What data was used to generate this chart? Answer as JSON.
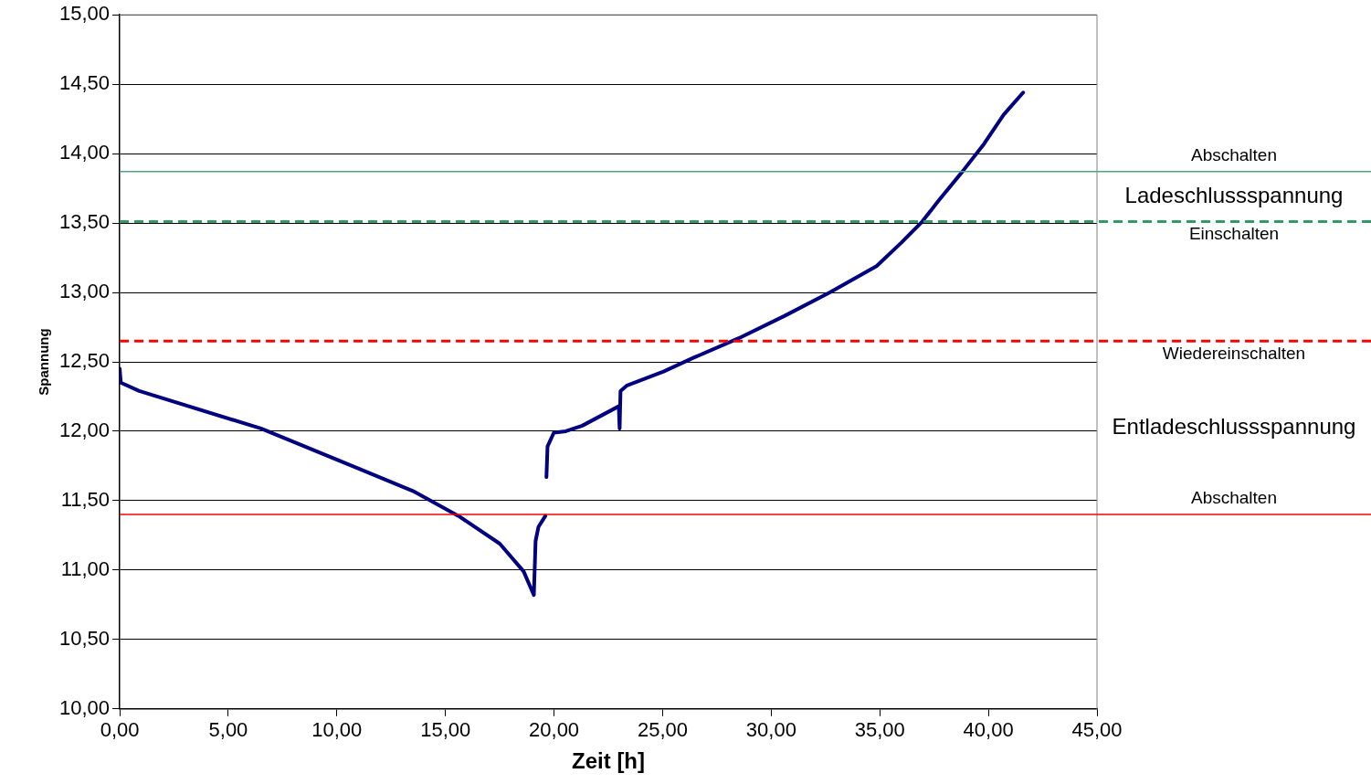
{
  "chart_data": {
    "type": "line",
    "xlabel": "Zeit [h]",
    "ylabel": "Spannung",
    "xlim": [
      0,
      45
    ],
    "ylim": [
      10,
      15
    ],
    "xticks": [
      {
        "value": 0,
        "label": "0,00"
      },
      {
        "value": 5,
        "label": "5,00"
      },
      {
        "value": 10,
        "label": "10,00"
      },
      {
        "value": 15,
        "label": "15,00"
      },
      {
        "value": 20,
        "label": "20,00"
      },
      {
        "value": 25,
        "label": "25,00"
      },
      {
        "value": 30,
        "label": "30,00"
      },
      {
        "value": 35,
        "label": "35,00"
      },
      {
        "value": 40,
        "label": "40,00"
      },
      {
        "value": 45,
        "label": "45,00"
      }
    ],
    "yticks": [
      {
        "value": 10,
        "label": "10,00"
      },
      {
        "value": 10.5,
        "label": "10,50"
      },
      {
        "value": 11,
        "label": "11,00"
      },
      {
        "value": 11.5,
        "label": "11,50"
      },
      {
        "value": 12,
        "label": "12,00"
      },
      {
        "value": 12.5,
        "label": "12,50"
      },
      {
        "value": 13,
        "label": "13,00"
      },
      {
        "value": 13.5,
        "label": "13,50"
      },
      {
        "value": 14,
        "label": "14,00"
      },
      {
        "value": 14.5,
        "label": "14,50"
      },
      {
        "value": 15,
        "label": "15,00"
      }
    ],
    "grid": "y",
    "legend": false,
    "marker": "none",
    "line_style": "solid",
    "series": [
      {
        "color": "#000080",
        "x": [
          0.0,
          0.05,
          0.9,
          6.5,
          10.7,
          13.5,
          15.6,
          17.5,
          18.6,
          19.07,
          19.15,
          19.28,
          19.6,
          19.62,
          19.65,
          19.7,
          19.99,
          20.54,
          21.3,
          22.98,
          23.02,
          23.06,
          23.36,
          25.04,
          26.43,
          28.5,
          30.6,
          32.7,
          34.85,
          36.0,
          36.95,
          37.7,
          38.8,
          39.8,
          40.7,
          41.6
        ],
        "values": [
          12.45,
          12.35,
          12.29,
          12.02,
          11.75,
          11.57,
          11.39,
          11.19,
          10.99,
          10.82,
          11.21,
          11.31,
          11.39,
          null,
          11.67,
          11.89,
          11.99,
          12.0,
          12.04,
          12.18,
          12.02,
          12.29,
          12.33,
          12.43,
          12.53,
          12.67,
          12.83,
          13.0,
          13.19,
          13.36,
          13.51,
          13.66,
          13.87,
          14.07,
          14.28,
          14.44
        ]
      }
    ],
    "ref_lines": [
      {
        "axis": "y",
        "value": 13.87,
        "label": "Abschalten",
        "color": "#4ea67a",
        "line_style": "solid"
      },
      {
        "axis": "y",
        "value": 13.51,
        "label": "Einschalten",
        "color": "#339966",
        "line_style": "dashed"
      },
      {
        "axis": "y",
        "value": 12.65,
        "label": "Wiedereinschalten",
        "color": "#ff0000",
        "line_style": "dashed"
      },
      {
        "axis": "y",
        "value": 11.4,
        "label": "Abschalten",
        "color": "#ff0000",
        "line_style": "solid"
      }
    ],
    "annotations": [
      "Ladeschlussspannung",
      "Entladeschlussspannung"
    ]
  }
}
